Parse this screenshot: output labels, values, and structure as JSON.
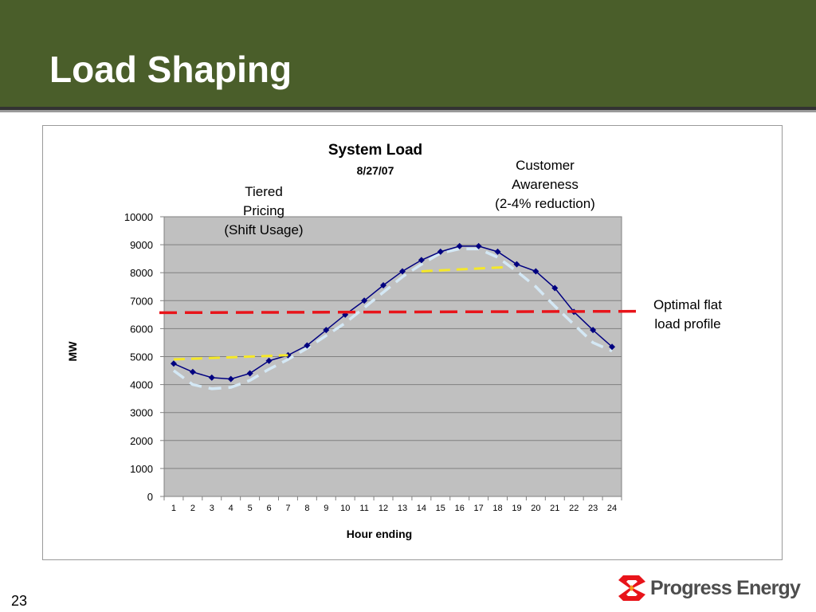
{
  "slide": {
    "title": "Load Shaping",
    "page_number": "23",
    "logo_text": "Progress Energy",
    "header_color": "#4a5e2a"
  },
  "annotations": {
    "tiered": [
      "Tiered",
      "Pricing",
      "(Shift Usage)"
    ],
    "customer": [
      "Customer",
      "Awareness",
      "(2-4% reduction)"
    ],
    "optimal": [
      "Optimal flat",
      "load profile"
    ]
  },
  "chart_data": {
    "type": "line",
    "title": "System Load",
    "subtitle": "8/27/07",
    "xlabel": "Hour ending",
    "ylabel": "MW",
    "ylim": [
      0,
      10000
    ],
    "y_ticks": [
      0,
      1000,
      2000,
      3000,
      4000,
      5000,
      6000,
      7000,
      8000,
      9000,
      10000
    ],
    "grid": true,
    "plot_background": "#c0c0c0",
    "categories": [
      "1",
      "2",
      "3",
      "4",
      "5",
      "6",
      "7",
      "8",
      "9",
      "10",
      "11",
      "12",
      "13",
      "14",
      "15",
      "16",
      "17",
      "18",
      "19",
      "20",
      "21",
      "22",
      "23",
      "24"
    ],
    "series": [
      {
        "name": "",
        "color": "#000080",
        "marker": "diamond",
        "values": [
          4750,
          4450,
          4250,
          4200,
          4400,
          4850,
          5050,
          5400,
          5950,
          6500,
          7000,
          7550,
          8050,
          8450,
          8750,
          8950,
          8950,
          8750,
          8300,
          8050,
          7450,
          6600,
          5950,
          5350
        ]
      }
    ],
    "overlays": [
      {
        "kind": "dashed-line",
        "role": "optimal-flat",
        "color": "#e8141a",
        "points": [
          [
            0,
            6570
          ],
          [
            25.5,
            6620
          ]
        ]
      },
      {
        "kind": "dashed-line",
        "role": "tiered-shift",
        "color": "#f5e828",
        "points": [
          [
            1,
            4900
          ],
          [
            7,
            5050
          ]
        ]
      },
      {
        "kind": "dashed-line",
        "role": "customer-awareness",
        "color": "#f5e828",
        "points": [
          [
            14,
            8050
          ],
          [
            18.5,
            8200
          ]
        ]
      },
      {
        "kind": "dashed-curve",
        "role": "reduced-load",
        "color": "#d4e8f5",
        "points": [
          [
            1,
            4500
          ],
          [
            2,
            4000
          ],
          [
            3,
            3850
          ],
          [
            4,
            3900
          ],
          [
            5,
            4150
          ],
          [
            6,
            4550
          ],
          [
            7,
            4900
          ],
          [
            8,
            5300
          ],
          [
            9,
            5750
          ],
          [
            10,
            6200
          ],
          [
            11,
            6750
          ],
          [
            12,
            7300
          ],
          [
            13,
            7850
          ],
          [
            14,
            8300
          ],
          [
            15,
            8700
          ],
          [
            16,
            8850
          ],
          [
            17,
            8850
          ],
          [
            18,
            8550
          ],
          [
            19,
            8050
          ],
          [
            20,
            7500
          ],
          [
            21,
            6800
          ],
          [
            22,
            6150
          ],
          [
            23,
            5500
          ],
          [
            24,
            5200
          ]
        ]
      }
    ]
  }
}
